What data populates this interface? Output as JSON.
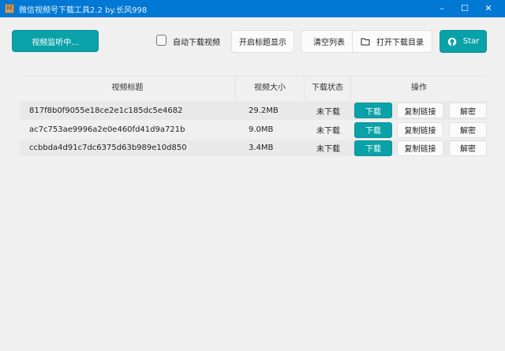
{
  "window": {
    "title": "微信视频号下载工具2.2 by.长风998"
  },
  "toolbar": {
    "monitor": "视频监听中...",
    "auto_download": "自动下载视频",
    "auto_download_checked": false,
    "show_title": "开启标题显示",
    "clear_list": "清空列表",
    "open_dir": "打开下载目录",
    "star": "Star"
  },
  "colors": {
    "accent": "#0aa2a8",
    "titlebar": "#0078d4"
  },
  "table": {
    "headers": [
      "视频标题",
      "视频大小",
      "下载状态",
      "操作"
    ],
    "rows": [
      {
        "title": "817f8b0f9055e18ce2e1c185dc5e4682",
        "size": "29.2MB",
        "status": "未下载",
        "download": "下载",
        "copy": "复制链接",
        "decrypt": "解密"
      },
      {
        "title": "ac7c753ae9996a2e0e460fd41d9a721b",
        "size": "9.0MB",
        "status": "未下载",
        "download": "下载",
        "copy": "复制链接",
        "decrypt": "解密"
      },
      {
        "title": "ccbbda4d91c7dc6375d63b989e10d850",
        "size": "3.4MB",
        "status": "未下载",
        "download": "下载",
        "copy": "复制链接",
        "decrypt": "解密"
      }
    ]
  }
}
